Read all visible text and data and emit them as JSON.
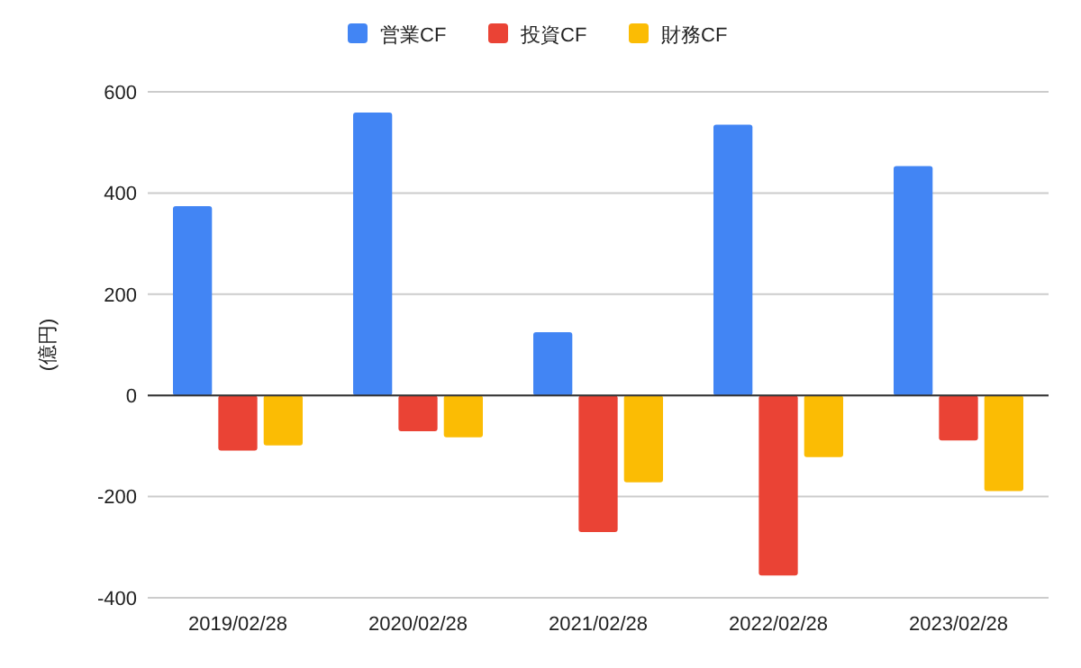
{
  "chart_data": {
    "type": "bar",
    "ylabel": "(億円)",
    "categories": [
      "2019/02/28",
      "2020/02/28",
      "2021/02/28",
      "2022/02/28",
      "2023/02/28"
    ],
    "series": [
      {
        "name": "営業CF",
        "color": "#4285f4",
        "values": [
          374,
          559,
          125,
          535,
          453
        ]
      },
      {
        "name": "投資CF",
        "color": "#ea4335",
        "values": [
          -109,
          -71,
          -270,
          -356,
          -89
        ]
      },
      {
        "name": "財務CF",
        "color": "#fbbc04",
        "values": [
          -99,
          -83,
          -172,
          -122,
          -189
        ]
      }
    ],
    "ylim": [
      -400,
      600
    ],
    "yticks": [
      -400,
      -200,
      0,
      200,
      400,
      600
    ],
    "grid": "y",
    "legend": "top"
  }
}
